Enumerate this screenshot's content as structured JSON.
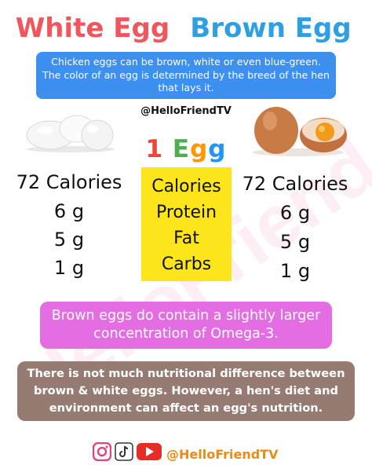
{
  "watermark": "HelloFriend",
  "titles": {
    "white": "White Egg",
    "brown": "Brown Egg"
  },
  "colors": {
    "white_title": "#f0575d",
    "brown_title": "#2f9fe4",
    "info_bg": "#3d8ff0",
    "highlight": "#fde51c",
    "note_bg": "#e56de3",
    "footer_box_bg": "#957b72",
    "handle_footer": "#ee8a13"
  },
  "intro": "Chicken eggs can be brown, white or even blue-green. The color of an egg is determined by the breed of the hen that lays it.",
  "handle_top": "@HelloFriendTV",
  "one_egg": {
    "number": "1",
    "word": "Egg",
    "letter_colors": [
      "#f44336",
      "#4caf50",
      "#ff9800",
      "#2196f3"
    ]
  },
  "labels": [
    "Calories",
    "Protein",
    "Fat",
    "Carbs"
  ],
  "white_values": [
    "72 Calories",
    "6 g",
    "5 g",
    "1 g"
  ],
  "brown_values": [
    "72 Calories",
    "6 g",
    "5 g",
    "1 g"
  ],
  "omega_note": "Brown eggs do contain a slightly larger concentration of Omega-3.",
  "summary": "There is not much nutritional difference between brown & white eggs. However, a hen's diet and environment can affect an egg's nutrition.",
  "footer": {
    "handle": "@HelloFriendTV",
    "icons": [
      "instagram-icon",
      "tiktok-icon",
      "youtube-icon"
    ]
  }
}
